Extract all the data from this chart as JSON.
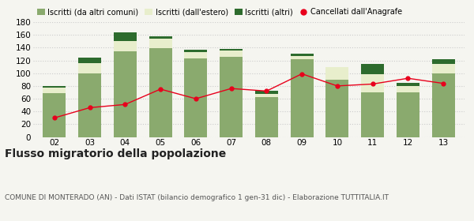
{
  "years": [
    "02",
    "03",
    "04",
    "05",
    "06",
    "07",
    "08",
    "09",
    "10",
    "11",
    "12",
    "13"
  ],
  "iscritti_comuni": [
    69,
    100,
    134,
    139,
    123,
    125,
    63,
    122,
    90,
    70,
    70,
    100
  ],
  "iscritti_estero": [
    8,
    16,
    16,
    15,
    10,
    10,
    4,
    5,
    20,
    28,
    10,
    15
  ],
  "iscritti_altri": [
    3,
    8,
    14,
    4,
    4,
    3,
    5,
    4,
    0,
    16,
    5,
    7
  ],
  "cancellati": [
    30,
    46,
    51,
    75,
    60,
    76,
    72,
    99,
    80,
    83,
    92,
    84
  ],
  "color_comuni": "#8aaa6e",
  "color_estero": "#e8eecc",
  "color_altri": "#2d6b2d",
  "color_cancellati": "#e8001c",
  "ylim": [
    0,
    180
  ],
  "yticks": [
    0,
    20,
    40,
    60,
    80,
    100,
    120,
    140,
    160,
    180
  ],
  "title": "Flusso migratorio della popolazione",
  "subtitle": "COMUNE DI MONTERADO (AN) - Dati ISTAT (bilancio demografico 1 gen-31 dic) - Elaborazione TUTTITALIA.IT",
  "legend_labels": [
    "Iscritti (da altri comuni)",
    "Iscritti (dall'estero)",
    "Iscritti (altri)",
    "Cancellati dall'Anagrafe"
  ],
  "bg_color": "#f5f5f0",
  "grid_color": "#cccccc",
  "title_fontsize": 10,
  "subtitle_fontsize": 6.5,
  "legend_fontsize": 7,
  "tick_fontsize": 7.5
}
